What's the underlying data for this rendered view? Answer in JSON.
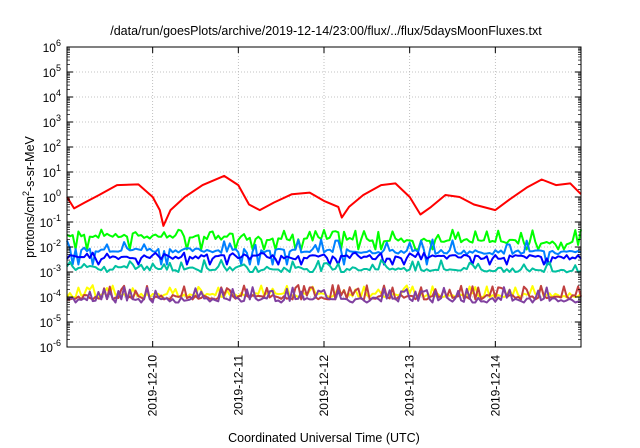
{
  "chart_data": {
    "type": "line",
    "title": "/data/run/goesPlots/archive/2019-12-14/23:00/flux/../flux/5daysMoonFluxes.txt",
    "xlabel": "Coordinated Universal Time (UTC)",
    "ylabel": {
      "base": "protons/cm",
      "sup": "2",
      "tail": "-s-sr-MeV"
    },
    "yscale": "log",
    "ylim_exp": [
      -6,
      6
    ],
    "ytick_exponents": [
      -6,
      -5,
      -4,
      -3,
      -2,
      -1,
      0,
      1,
      2,
      3,
      4,
      5,
      6
    ],
    "ytick_base": "10",
    "xlim": [
      "2019-12-09 00:00",
      "2019-12-15 00:00"
    ],
    "xticks": [
      "2019-12-10",
      "2019-12-11",
      "2019-12-12",
      "2019-12-13",
      "2019-12-14"
    ],
    "grid": true,
    "legend": "none",
    "series": [
      {
        "color": "#ff0000",
        "points": [
          [
            "2019-12-09 00:00",
            1.0
          ],
          [
            "2019-12-09 02:00",
            0.35
          ],
          [
            "2019-12-09 05:00",
            0.6
          ],
          [
            "2019-12-09 09:00",
            1.2
          ],
          [
            "2019-12-09 14:00",
            3.0
          ],
          [
            "2019-12-09 20:00",
            3.2
          ],
          [
            "2019-12-10 00:00",
            1.0
          ],
          [
            "2019-12-10 02:00",
            0.3
          ],
          [
            "2019-12-10 03:00",
            0.07
          ],
          [
            "2019-12-10 05:00",
            0.3
          ],
          [
            "2019-12-10 09:00",
            1.0
          ],
          [
            "2019-12-10 14:00",
            3.0
          ],
          [
            "2019-12-10 20:00",
            7.0
          ],
          [
            "2019-12-11 00:00",
            3.0
          ],
          [
            "2019-12-11 03:00",
            0.5
          ],
          [
            "2019-12-11 06:00",
            0.3
          ],
          [
            "2019-12-11 10:00",
            0.6
          ],
          [
            "2019-12-11 15:00",
            1.3
          ],
          [
            "2019-12-11 20:00",
            1.5
          ],
          [
            "2019-12-12 00:00",
            0.7
          ],
          [
            "2019-12-12 04:00",
            0.4
          ],
          [
            "2019-12-12 05:00",
            0.15
          ],
          [
            "2019-12-12 07:00",
            0.4
          ],
          [
            "2019-12-12 11:00",
            1.2
          ],
          [
            "2019-12-12 16:00",
            3.0
          ],
          [
            "2019-12-12 20:00",
            3.5
          ],
          [
            "2019-12-13 00:00",
            1.0
          ],
          [
            "2019-12-13 03:00",
            0.2
          ],
          [
            "2019-12-13 06:00",
            0.4
          ],
          [
            "2019-12-13 10:00",
            1.2
          ],
          [
            "2019-12-13 14:00",
            1.0
          ],
          [
            "2019-12-13 18:00",
            0.5
          ],
          [
            "2019-12-14 00:00",
            0.3
          ],
          [
            "2019-12-14 04:00",
            0.8
          ],
          [
            "2019-12-14 09:00",
            2.5
          ],
          [
            "2019-12-14 13:00",
            5.0
          ],
          [
            "2019-12-14 17:00",
            3.0
          ],
          [
            "2019-12-14 21:00",
            3.5
          ],
          [
            "2019-12-15 00:00",
            1.3
          ]
        ]
      },
      {
        "color": "#00ff00",
        "points": [
          [
            "2019-12-09 00:00",
            0.03
          ],
          [
            "2019-12-15 00:00",
            0.015
          ]
        ],
        "spikes": 0.05,
        "spike_min": 0.008
      },
      {
        "color": "#0080ff",
        "points": [
          [
            "2019-12-09 00:00",
            0.008
          ],
          [
            "2019-12-15 00:00",
            0.006
          ]
        ],
        "spikes": 0.02,
        "spike_min": 0.002
      },
      {
        "color": "#0000ff",
        "points": [
          [
            "2019-12-09 00:00",
            0.004
          ],
          [
            "2019-12-15 00:00",
            0.004
          ]
        ],
        "spikes": 0.006,
        "spike_min": 0.002
      },
      {
        "color": "#00c0a0",
        "points": [
          [
            "2019-12-09 00:00",
            0.0015
          ],
          [
            "2019-12-15 00:00",
            0.0012
          ]
        ],
        "spikes": 0.003,
        "spike_min": 0.001
      },
      {
        "color": "#ffff00",
        "points": [
          [
            "2019-12-09 00:00",
            0.00012
          ],
          [
            "2019-12-15 00:00",
            0.00012
          ]
        ],
        "spikes": 0.0003,
        "spike_min": 0.0001
      },
      {
        "color": "#c04040",
        "points": [
          [
            "2019-12-09 00:00",
            0.0001
          ],
          [
            "2019-12-15 00:00",
            0.0001
          ]
        ],
        "spikes": 0.0003,
        "spike_min": 8e-05
      },
      {
        "color": "#8040a0",
        "points": [
          [
            "2019-12-09 00:00",
            8e-05
          ],
          [
            "2019-12-15 00:00",
            8e-05
          ]
        ],
        "spikes": 0.00025,
        "spike_min": 6e-05
      }
    ]
  }
}
